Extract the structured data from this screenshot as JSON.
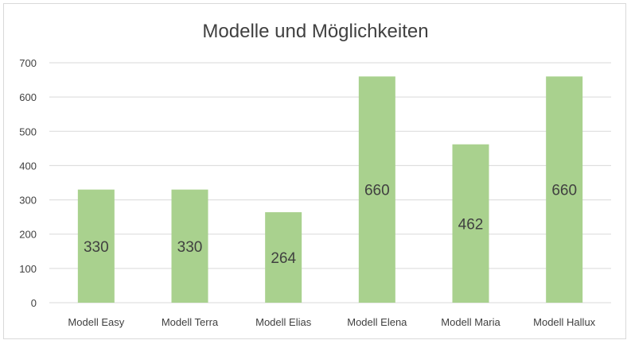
{
  "chart_data": {
    "type": "bar",
    "title": "Modelle und Möglichkeiten",
    "categories": [
      "Modell Easy",
      "Modell Terra",
      "Modell Elias",
      "Modell Elena",
      "Modell Maria",
      "Modell Hallux"
    ],
    "values": [
      330,
      330,
      264,
      660,
      462,
      660
    ],
    "data_labels": [
      "330",
      "330",
      "264",
      "660",
      "462",
      "660"
    ],
    "ylim": [
      0,
      700
    ],
    "yticks": [
      "0",
      "100",
      "200",
      "300",
      "400",
      "500",
      "600",
      "700"
    ],
    "grid": true,
    "legend": "none",
    "bar_color": "#a9d18e",
    "grid_color": "#d9d9d9"
  }
}
